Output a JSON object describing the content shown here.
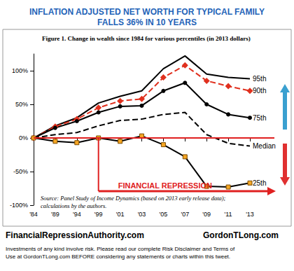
{
  "chart_data": {
    "type": "line",
    "title": "INFLATION ADJUSTED NET WORTH FOR TYPICAL FAMILY\nFALLS 36% IN 10 YEARS",
    "subtitle": "Figure 1. Change in wealth since 1984 for various percentiles (in 2013 dollars)",
    "source": "Source: Panel Study of Income Dynamics (based on 2013 early release data);\ncalculations by the authors.",
    "categories": [
      "'84",
      "'89",
      "'94",
      "'99",
      "'01",
      "'03",
      "'05",
      "'07",
      "'09",
      "'11",
      "'13"
    ],
    "series": [
      {
        "name": "95th",
        "color": "#000000",
        "marker": "none",
        "line_style": "solid",
        "values": [
          0,
          18,
          30,
          52,
          62,
          70,
          103,
          122,
          95,
          90,
          88
        ]
      },
      {
        "name": "90th",
        "color": "#e0301e",
        "marker": "diamond",
        "line_style": "dashed",
        "values": [
          0,
          17,
          28,
          45,
          55,
          58,
          90,
          108,
          85,
          77,
          70
        ]
      },
      {
        "name": "75th",
        "color": "#000000",
        "marker": "circle",
        "line_style": "solid",
        "values": [
          0,
          15,
          25,
          38,
          47,
          48,
          70,
          82,
          50,
          35,
          30
        ]
      },
      {
        "name": "Median",
        "color": "#000000",
        "marker": "none",
        "line_style": "dashed",
        "values": [
          0,
          5,
          8,
          18,
          26,
          28,
          35,
          38,
          5,
          -8,
          -12
        ]
      },
      {
        "name": "25th",
        "color": "#000000",
        "marker": "square",
        "line_style": "solid",
        "values": [
          0,
          -5,
          -7,
          0,
          -5,
          3,
          -10,
          -28,
          -72,
          -73,
          -67
        ]
      }
    ],
    "ylim": [
      -100,
      125
    ],
    "yticks": [
      {
        "value": -100,
        "label": "-100%"
      },
      {
        "value": -50,
        "label": "-50%"
      },
      {
        "value": 0,
        "label": "0%"
      },
      {
        "value": 50,
        "label": "50%"
      },
      {
        "value": 100,
        "label": "100%"
      }
    ],
    "grid": false,
    "annotations": [
      {
        "text": "FINANCIAL REPRESSION",
        "x": "'99",
        "y": 0
      }
    ],
    "footer": {
      "left": "FinancialRepressionAuthority.com",
      "right": "GordonTLong.com",
      "disclaimer": "Investments of any kind involve risk. Please read our complete Risk Disclaimer and Terms of\nUse at GordonTLong.com BEFORE considering any statements or charts within this tweet."
    }
  }
}
